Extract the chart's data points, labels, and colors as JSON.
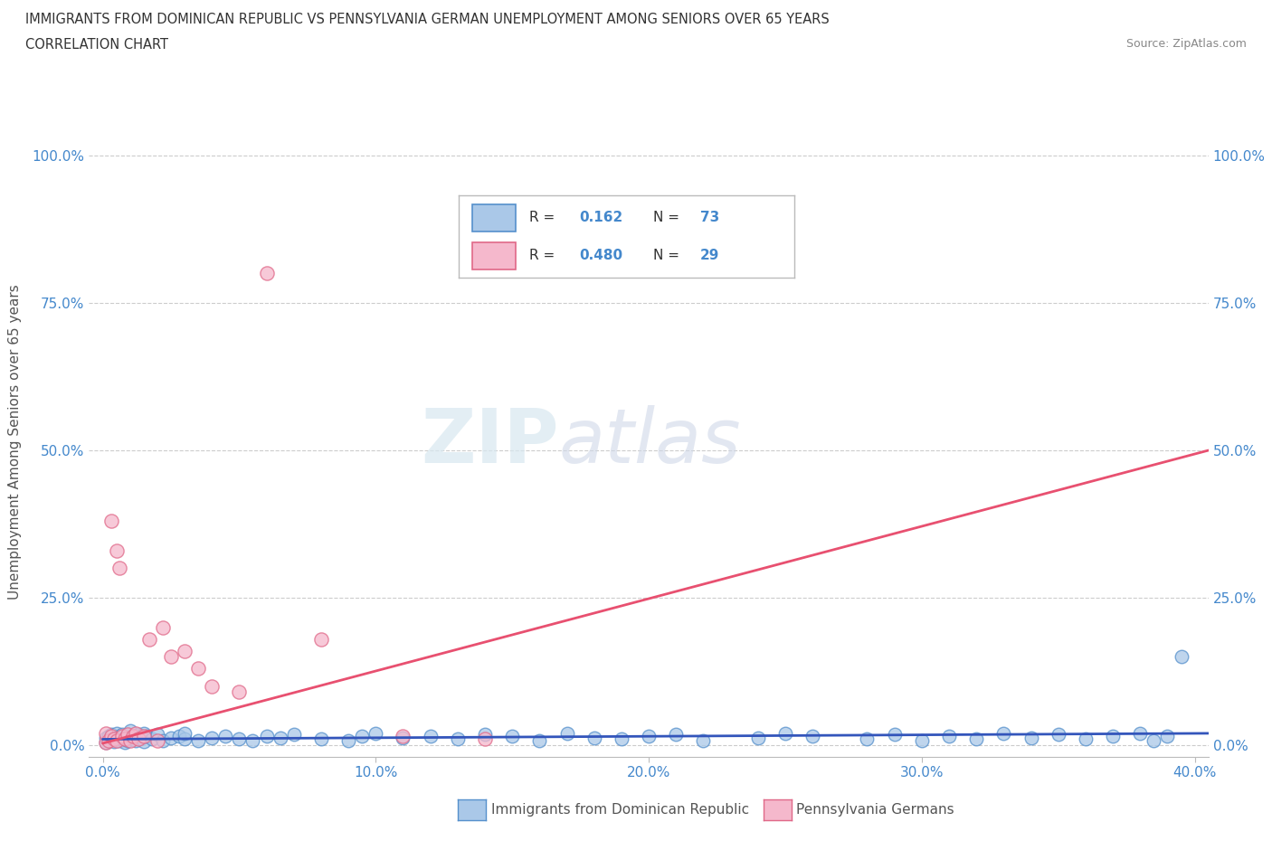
{
  "title_line1": "IMMIGRANTS FROM DOMINICAN REPUBLIC VS PENNSYLVANIA GERMAN UNEMPLOYMENT AMONG SENIORS OVER 65 YEARS",
  "title_line2": "CORRELATION CHART",
  "source_text": "Source: ZipAtlas.com",
  "ylabel": "Unemployment Among Seniors over 65 years",
  "xlim": [
    -0.005,
    0.405
  ],
  "ylim": [
    -0.02,
    1.05
  ],
  "xticks": [
    0.0,
    0.1,
    0.2,
    0.3,
    0.4
  ],
  "yticks": [
    0.0,
    0.25,
    0.5,
    0.75,
    1.0
  ],
  "xticklabels": [
    "0.0%",
    "10.0%",
    "20.0%",
    "30.0%",
    "40.0%"
  ],
  "yticklabels": [
    "0.0%",
    "25.0%",
    "50.0%",
    "75.0%",
    "100.0%"
  ],
  "blue_color": "#aac8e8",
  "blue_edge": "#5590cc",
  "pink_color": "#f5b8cc",
  "pink_edge": "#e06888",
  "trend_blue_color": "#3355bb",
  "trend_blue_style": "-",
  "trend_pink_color": "#e85070",
  "watermark_zip": "ZIP",
  "watermark_atlas": "atlas",
  "legend_r1_label": "R = ",
  "legend_r1_val": "0.162",
  "legend_n1_label": "N = ",
  "legend_n1_val": "73",
  "legend_r2_label": "R = ",
  "legend_r2_val": "0.480",
  "legend_n2_label": "N = ",
  "legend_n2_val": "29",
  "bottom_label1": "Immigrants from Dominican Republic",
  "bottom_label2": "Pennsylvania Germans",
  "bg_color": "#ffffff",
  "grid_color": "#cccccc",
  "tick_color": "#4488cc",
  "blue_x": [
    0.001,
    0.001,
    0.002,
    0.002,
    0.003,
    0.003,
    0.004,
    0.005,
    0.005,
    0.006,
    0.006,
    0.007,
    0.007,
    0.008,
    0.008,
    0.009,
    0.01,
    0.01,
    0.011,
    0.012,
    0.013,
    0.014,
    0.015,
    0.015,
    0.016,
    0.018,
    0.02,
    0.022,
    0.025,
    0.028,
    0.03,
    0.03,
    0.035,
    0.04,
    0.045,
    0.05,
    0.055,
    0.06,
    0.065,
    0.07,
    0.08,
    0.09,
    0.095,
    0.1,
    0.11,
    0.12,
    0.13,
    0.14,
    0.15,
    0.16,
    0.17,
    0.18,
    0.19,
    0.2,
    0.21,
    0.22,
    0.24,
    0.25,
    0.26,
    0.28,
    0.29,
    0.3,
    0.31,
    0.32,
    0.33,
    0.34,
    0.35,
    0.36,
    0.37,
    0.38,
    0.385,
    0.39,
    0.395
  ],
  "blue_y": [
    0.005,
    0.012,
    0.008,
    0.015,
    0.01,
    0.018,
    0.006,
    0.012,
    0.02,
    0.008,
    0.015,
    0.01,
    0.018,
    0.005,
    0.012,
    0.008,
    0.015,
    0.025,
    0.01,
    0.008,
    0.018,
    0.012,
    0.02,
    0.006,
    0.015,
    0.01,
    0.018,
    0.008,
    0.012,
    0.015,
    0.01,
    0.02,
    0.008,
    0.012,
    0.015,
    0.01,
    0.008,
    0.015,
    0.012,
    0.018,
    0.01,
    0.008,
    0.015,
    0.02,
    0.012,
    0.015,
    0.01,
    0.018,
    0.015,
    0.008,
    0.02,
    0.012,
    0.01,
    0.015,
    0.018,
    0.008,
    0.012,
    0.02,
    0.015,
    0.01,
    0.018,
    0.008,
    0.015,
    0.01,
    0.02,
    0.012,
    0.018,
    0.01,
    0.015,
    0.02,
    0.008,
    0.015,
    0.15
  ],
  "pink_x": [
    0.001,
    0.001,
    0.002,
    0.003,
    0.003,
    0.004,
    0.005,
    0.005,
    0.006,
    0.007,
    0.008,
    0.009,
    0.01,
    0.011,
    0.012,
    0.013,
    0.015,
    0.017,
    0.02,
    0.022,
    0.025,
    0.03,
    0.035,
    0.04,
    0.05,
    0.06,
    0.08,
    0.11,
    0.14
  ],
  "pink_y": [
    0.005,
    0.02,
    0.008,
    0.015,
    0.38,
    0.01,
    0.33,
    0.008,
    0.3,
    0.015,
    0.01,
    0.018,
    0.008,
    0.015,
    0.02,
    0.01,
    0.015,
    0.18,
    0.008,
    0.2,
    0.15,
    0.16,
    0.13,
    0.1,
    0.09,
    0.8,
    0.18,
    0.015,
    0.01
  ],
  "blue_trend_x": [
    0.0,
    0.405
  ],
  "blue_trend_y": [
    0.01,
    0.02
  ],
  "pink_trend_x": [
    0.0,
    0.405
  ],
  "pink_trend_y": [
    0.003,
    0.5
  ]
}
